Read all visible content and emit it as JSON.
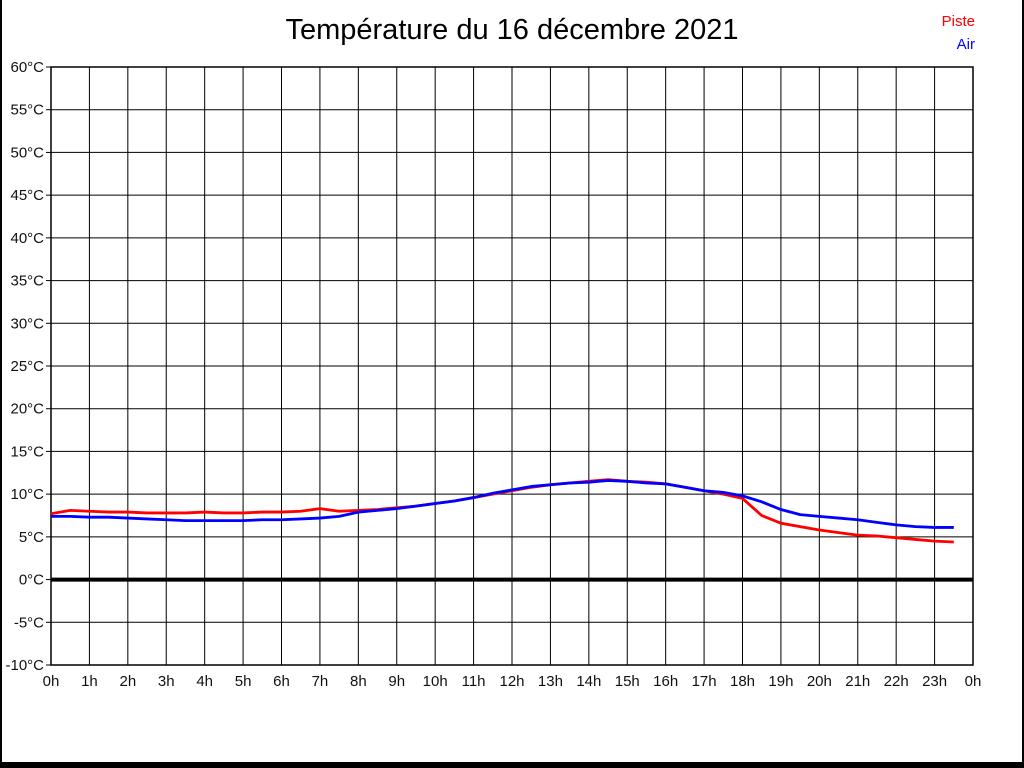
{
  "chart_data": {
    "type": "line",
    "title": "Température du 16 décembre 2021",
    "xlabel": "",
    "ylabel": "",
    "ylim": [
      -10,
      60
    ],
    "xlim_hours": [
      0,
      24
    ],
    "grid": true,
    "zero_line_bold": true,
    "legend_position": "top-right",
    "y_tick_values": [
      60,
      55,
      50,
      45,
      40,
      35,
      30,
      25,
      20,
      15,
      10,
      5,
      0,
      -5,
      -10
    ],
    "y_tick_labels": [
      "60°C",
      "55°C",
      "50°C",
      "45°C",
      "40°C",
      "35°C",
      "30°C",
      "25°C",
      "20°C",
      "15°C",
      "10°C",
      "5°C",
      "0°C",
      "-5°C",
      "-10°C"
    ],
    "x_tick_hours": [
      0,
      1,
      2,
      3,
      4,
      5,
      6,
      7,
      8,
      9,
      10,
      11,
      12,
      13,
      14,
      15,
      16,
      17,
      18,
      19,
      20,
      21,
      22,
      23,
      24
    ],
    "x_tick_labels": [
      "0h",
      "1h",
      "2h",
      "3h",
      "4h",
      "5h",
      "6h",
      "7h",
      "8h",
      "9h",
      "10h",
      "11h",
      "12h",
      "13h",
      "14h",
      "15h",
      "16h",
      "17h",
      "18h",
      "19h",
      "20h",
      "21h",
      "22h",
      "23h",
      "0h"
    ],
    "x_hours": [
      0,
      0.5,
      1,
      1.5,
      2,
      2.5,
      3,
      3.5,
      4,
      4.5,
      5,
      5.5,
      6,
      6.5,
      7,
      7.5,
      8,
      8.5,
      9,
      9.5,
      10,
      10.5,
      11,
      11.5,
      12,
      12.5,
      13,
      13.5,
      14,
      14.5,
      15,
      15.5,
      16,
      16.5,
      17,
      17.5,
      18,
      18.5,
      19,
      19.5,
      20,
      20.5,
      21,
      21.5,
      22,
      22.5,
      23,
      23.5
    ],
    "series": [
      {
        "name": "Piste",
        "color": "#ff0000",
        "unit": "°C",
        "values": [
          7.7,
          8.1,
          8.0,
          7.9,
          7.9,
          7.8,
          7.8,
          7.8,
          7.9,
          7.8,
          7.8,
          7.9,
          7.9,
          8.0,
          8.3,
          8.0,
          8.1,
          8.2,
          8.4,
          8.6,
          8.9,
          9.2,
          9.6,
          10.0,
          10.4,
          10.8,
          11.1,
          11.3,
          11.5,
          11.7,
          11.5,
          11.4,
          11.2,
          10.8,
          10.4,
          10.0,
          9.5,
          7.5,
          6.6,
          6.2,
          5.8,
          5.5,
          5.2,
          5.1,
          4.9,
          4.7,
          4.5,
          4.4
        ]
      },
      {
        "name": "Air",
        "color": "#0000ff",
        "unit": "°C",
        "values": [
          7.4,
          7.4,
          7.3,
          7.3,
          7.2,
          7.1,
          7.0,
          6.9,
          6.9,
          6.9,
          6.9,
          7.0,
          7.0,
          7.1,
          7.2,
          7.4,
          7.9,
          8.1,
          8.3,
          8.6,
          8.9,
          9.2,
          9.6,
          10.1,
          10.5,
          10.9,
          11.1,
          11.3,
          11.4,
          11.6,
          11.5,
          11.3,
          11.2,
          10.8,
          10.4,
          10.2,
          9.8,
          9.1,
          8.2,
          7.6,
          7.4,
          7.2,
          7.0,
          6.7,
          6.4,
          6.2,
          6.1,
          6.1
        ]
      }
    ]
  }
}
